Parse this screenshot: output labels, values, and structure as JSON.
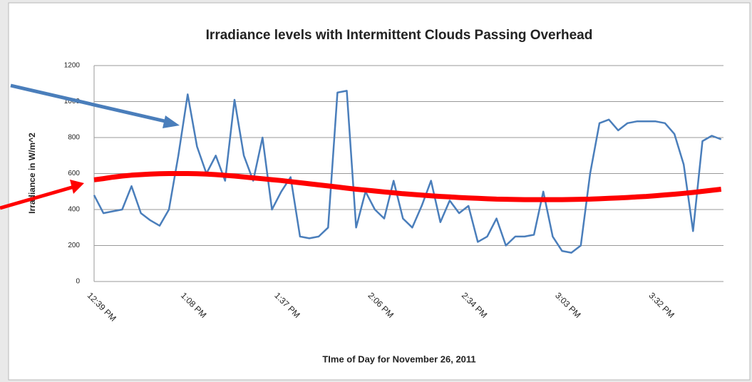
{
  "chart_data": {
    "type": "line",
    "title": "Irradiance levels with Intermittent Clouds Passing Overhead",
    "x_label": "TIme of Day for November 26, 2011",
    "y_label": "Irradiance in W/m^2",
    "categories": [
      "12:39 PM",
      null,
      null,
      null,
      null,
      null,
      null,
      null,
      null,
      null,
      "1:08 PM",
      null,
      null,
      null,
      null,
      null,
      null,
      null,
      null,
      null,
      "1:37 PM",
      null,
      null,
      null,
      null,
      null,
      null,
      null,
      null,
      null,
      "2:06 PM",
      null,
      null,
      null,
      null,
      null,
      null,
      null,
      null,
      null,
      "2:34 PM",
      null,
      null,
      null,
      null,
      null,
      null,
      null,
      null,
      null,
      "3:03 PM",
      null,
      null,
      null,
      null,
      null,
      null,
      null,
      null,
      null,
      "3:32 PM",
      null,
      null,
      null,
      null,
      null,
      null,
      null
    ],
    "series": [
      {
        "color": "#4a7ebb",
        "values": [
          480,
          380,
          390,
          400,
          530,
          380,
          340,
          310,
          400,
          700,
          1040,
          750,
          600,
          700,
          560,
          1010,
          700,
          560,
          800,
          400,
          500,
          580,
          250,
          240,
          250,
          300,
          1050,
          1060,
          300,
          500,
          400,
          350,
          560,
          350,
          300,
          420,
          560,
          330,
          450,
          380,
          420,
          220,
          250,
          350,
          200,
          250,
          250,
          260,
          500,
          250,
          170,
          160,
          200,
          600,
          880,
          900,
          840,
          880,
          890,
          890,
          890,
          880,
          820,
          650,
          280,
          780,
          810,
          790
        ]
      },
      {
        "color": "#ff0000",
        "values": [
          565,
          572,
          580,
          586,
          591,
          594,
          597,
          599,
          600,
          600,
          600,
          599,
          597,
          594,
          590,
          586,
          581,
          576,
          571,
          566,
          561,
          555,
          549,
          543,
          537,
          531,
          525,
          519,
          513,
          508,
          503,
          498,
          493,
          488,
          484,
          480,
          476,
          473,
          470,
          467,
          464,
          462,
          460,
          458,
          457,
          456,
          455,
          455,
          455,
          455,
          455,
          456,
          457,
          458,
          460,
          462,
          464,
          467,
          470,
          473,
          477,
          481,
          485,
          490,
          495,
          501,
          507,
          513
        ]
      }
    ],
    "ylim": [
      0,
      1200
    ],
    "yticks": [
      0,
      200,
      400,
      600,
      800,
      1000,
      1200
    ],
    "grid": true
  }
}
